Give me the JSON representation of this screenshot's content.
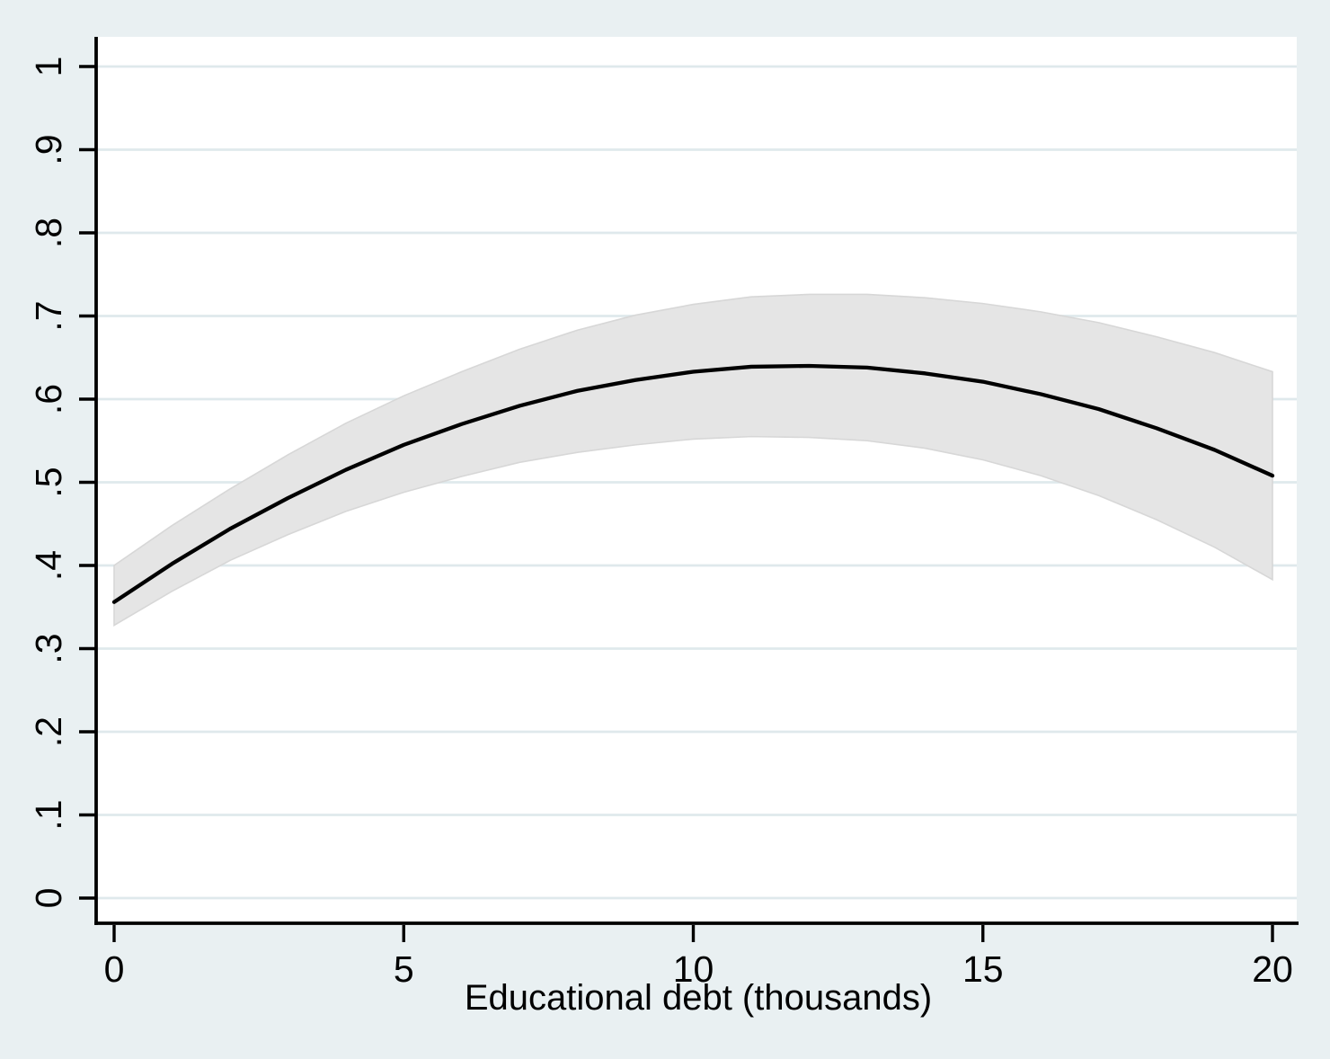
{
  "figure": {
    "description": "Stata-style margins plot: predicted probability versus educational debt with 95% confidence band"
  },
  "chart_data": {
    "type": "line",
    "title": "",
    "xlabel": "Educational debt (thousands)",
    "ylabel": "",
    "x": [
      0,
      1,
      2,
      3,
      4,
      5,
      6,
      7,
      8,
      9,
      10,
      11,
      12,
      13,
      14,
      15,
      16,
      17,
      18,
      19,
      20
    ],
    "series": [
      {
        "name": "predicted-probability",
        "values": [
          0.356,
          0.402,
          0.444,
          0.481,
          0.515,
          0.545,
          0.57,
          0.592,
          0.61,
          0.623,
          0.633,
          0.639,
          0.64,
          0.638,
          0.631,
          0.621,
          0.606,
          0.588,
          0.565,
          0.539,
          0.508
        ]
      },
      {
        "name": "ci-lower",
        "values": [
          0.328,
          0.369,
          0.406,
          0.437,
          0.465,
          0.488,
          0.507,
          0.524,
          0.536,
          0.545,
          0.552,
          0.555,
          0.554,
          0.55,
          0.541,
          0.527,
          0.508,
          0.484,
          0.455,
          0.422,
          0.383
        ]
      },
      {
        "name": "ci-upper",
        "values": [
          0.4,
          0.448,
          0.492,
          0.533,
          0.571,
          0.604,
          0.633,
          0.66,
          0.683,
          0.701,
          0.714,
          0.723,
          0.726,
          0.726,
          0.722,
          0.715,
          0.705,
          0.692,
          0.675,
          0.656,
          0.633
        ]
      }
    ],
    "x_ticks": {
      "values": [
        0,
        5,
        10,
        15,
        20
      ],
      "labels": [
        "0",
        "5",
        "10",
        "15",
        "20"
      ]
    },
    "y_ticks": {
      "values": [
        0,
        0.1,
        0.2,
        0.3,
        0.4,
        0.5,
        0.6,
        0.7,
        0.8,
        0.9,
        1
      ],
      "labels": [
        "0",
        ".1",
        ".2",
        ".3",
        ".4",
        ".5",
        ".6",
        ".7",
        ".8",
        ".9",
        "1"
      ]
    },
    "xlim": [
      -0.31,
      20.42
    ],
    "ylim": [
      -0.03,
      1.036
    ],
    "grid": "horizontal",
    "legend": "none",
    "colors": {
      "line": "#000000",
      "ci_fill": "#E5E5E5",
      "ci_edge": "#D7D7D7",
      "grid": "#DFE9EC",
      "background": "#E9F0F2",
      "plot_background": "#FFFFFF",
      "axis": "#000000"
    }
  }
}
